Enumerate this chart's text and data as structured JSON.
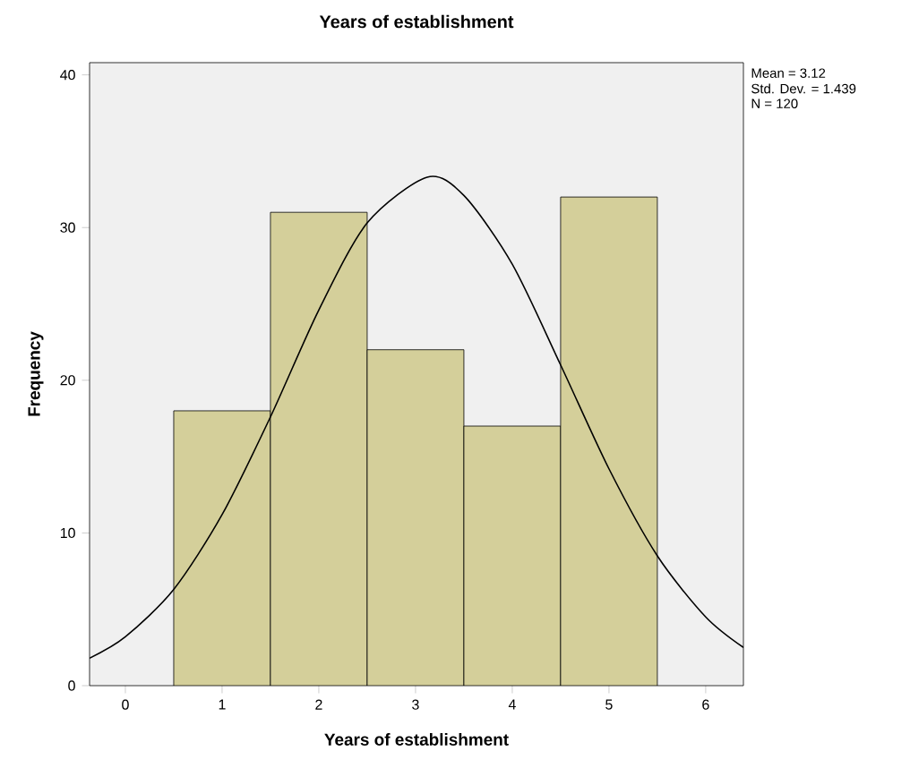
{
  "chart_data": {
    "type": "histogram",
    "title": "Years of establishment",
    "xlabel": "Years of establishment",
    "ylabel": "Frequency",
    "bins": [
      0.5,
      1.5,
      2.5,
      3.5,
      4.5,
      5.5
    ],
    "values": [
      18,
      31,
      22,
      17,
      32
    ],
    "color": "#d4cf9a",
    "series": [
      {
        "type": "line",
        "color": "#000000",
        "x": [
          -0.37,
          0,
          0.5,
          1,
          1.5,
          2,
          2.5,
          3.12,
          3.5,
          4,
          4.5,
          5,
          5.5,
          6,
          6.39
        ],
        "values": [
          1.8,
          3.2,
          6.3,
          11.2,
          17.6,
          24.6,
          30.3,
          33.3,
          32.1,
          27.6,
          21.0,
          14.2,
          8.5,
          4.5,
          2.5
        ]
      }
    ],
    "xlim": [
      -0.37,
      6.39
    ],
    "ylim": [
      0,
      40.8
    ],
    "xticks": [
      0,
      1,
      2,
      3,
      4,
      5,
      6
    ],
    "yticks": [
      0,
      10,
      20,
      30,
      40
    ],
    "grid": false,
    "annotations": [
      "Mean = 3.12",
      "Std. Dev. = 1.439",
      "N = 120"
    ]
  }
}
